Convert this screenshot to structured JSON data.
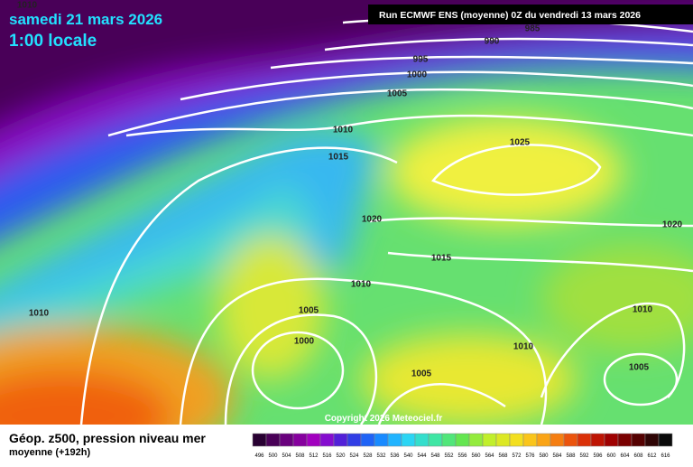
{
  "header": {
    "date": "samedi 21 mars 2026",
    "time": "1:00 locale",
    "run": "Run ECMWF ENS (moyenne) 0Z du vendredi 13 mars 2026"
  },
  "isobar_labels": [
    "1010",
    "985",
    "990",
    "995",
    "1000",
    "1005",
    "1010",
    "1015",
    "1025",
    "1020",
    "1020",
    "1015",
    "1010",
    "1010",
    "1005",
    "1000",
    "1010",
    "1010",
    "1005",
    "1005"
  ],
  "copyright": "Copyright 2026 Meteociel.fr",
  "footer": {
    "title": "Géop. z500, pression niveau mer",
    "subtitle": "moyenne   (+192h)"
  },
  "scale_labels": [
    "496",
    "500",
    "504",
    "508",
    "512",
    "516",
    "520",
    "524",
    "528",
    "532",
    "536",
    "540",
    "544",
    "548",
    "552",
    "556",
    "560",
    "564",
    "568",
    "572",
    "576",
    "580",
    "584",
    "588",
    "592",
    "596",
    "600",
    "604",
    "608",
    "612",
    "616"
  ]
}
